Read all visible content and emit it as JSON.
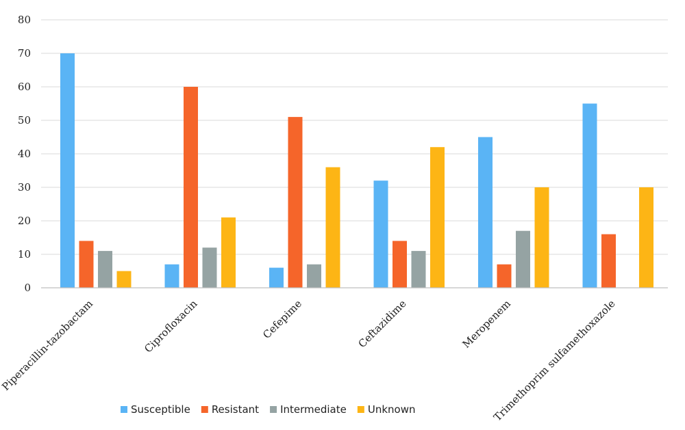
{
  "chart_data": {
    "type": "bar",
    "categories": [
      "Piperacillin-tazobactam",
      "Ciprofloxacin",
      "Cefepime",
      "Ceftazidime",
      "Meropenem",
      "Trimethoprim sulfamethoxazole"
    ],
    "series": [
      {
        "name": "Susceptible",
        "color": "#5AB4F5",
        "values": [
          70,
          7,
          6,
          32,
          45,
          55
        ]
      },
      {
        "name": "Resistant",
        "color": "#F5652A",
        "values": [
          14,
          60,
          51,
          14,
          7,
          16
        ]
      },
      {
        "name": "Intermediate",
        "color": "#95A3A3",
        "values": [
          11,
          12,
          7,
          11,
          17,
          0
        ]
      },
      {
        "name": "Unknown",
        "color": "#FDB515",
        "values": [
          5,
          21,
          36,
          42,
          30,
          30
        ]
      }
    ],
    "ylim": [
      0,
      80
    ],
    "yticks": [
      "0",
      "10",
      "20",
      "30",
      "40",
      "50",
      "60",
      "70",
      "80"
    ],
    "grid": true,
    "legend": "bottom",
    "title": "",
    "xlabel": "",
    "ylabel": ""
  }
}
